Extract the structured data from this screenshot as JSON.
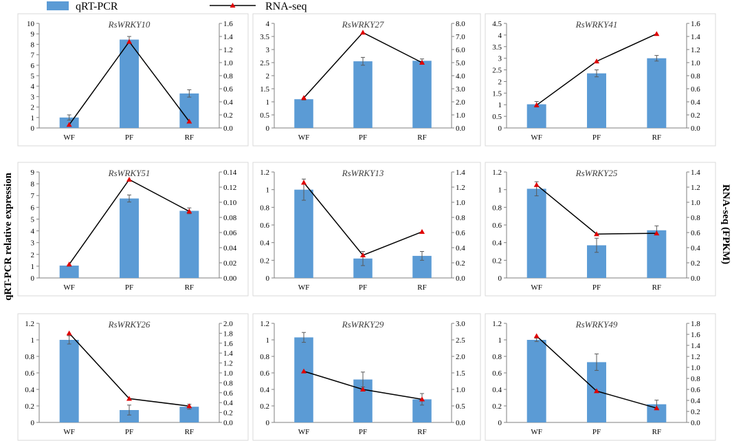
{
  "legend": {
    "bar_label": "qRT-PCR",
    "line_label": "RNA-seq"
  },
  "y_left_label": "qRT-PCR relative expression",
  "y_right_label": "RNA-seq (FPKM)",
  "colors": {
    "bar": "#5b9bd5",
    "line": "#000000",
    "marker": "#e00000",
    "error": "#595959",
    "axis": "#7f7f7f"
  },
  "chart_data": [
    {
      "type": "bar",
      "title": "RsWRKY10",
      "categories": [
        "WF",
        "PF",
        "RF"
      ],
      "series": [
        {
          "name": "qRT-PCR",
          "axis": "left",
          "values": [
            1.0,
            8.45,
            3.3
          ],
          "errors": [
            0.25,
            0.3,
            0.35
          ]
        },
        {
          "name": "RNA-seq",
          "axis": "right",
          "values": [
            0.05,
            1.32,
            0.1
          ]
        }
      ],
      "ylim_left": [
        0,
        10
      ],
      "yticks_left": [
        "0",
        "1",
        "2",
        "3",
        "4",
        "5",
        "6",
        "7",
        "8",
        "9",
        "10"
      ],
      "ylim_right": [
        0,
        1.6
      ],
      "yticks_right": [
        "0.0",
        "0.2",
        "0.4",
        "0.6",
        "0.8",
        "1.0",
        "1.2",
        "1.4",
        "1.6"
      ]
    },
    {
      "type": "bar",
      "title": "RsWRKY27",
      "categories": [
        "WF",
        "PF",
        "RF"
      ],
      "series": [
        {
          "name": "qRT-PCR",
          "axis": "left",
          "values": [
            1.1,
            2.55,
            2.57
          ],
          "errors": [
            0.03,
            0.15,
            0.07
          ]
        },
        {
          "name": "RNA-seq",
          "axis": "right",
          "values": [
            2.3,
            7.3,
            5.0
          ]
        }
      ],
      "ylim_left": [
        0,
        4
      ],
      "yticks_left": [
        "0",
        "0.5",
        "1",
        "1.5",
        "2",
        "2.5",
        "3",
        "3.5",
        "4"
      ],
      "ylim_right": [
        0,
        8
      ],
      "yticks_right": [
        "0.0",
        "1.0",
        "2.0",
        "3.0",
        "4.0",
        "5.0",
        "6.0",
        "7.0",
        "8.0"
      ]
    },
    {
      "type": "bar",
      "title": "RsWRKY41",
      "categories": [
        "WF",
        "PF",
        "RF"
      ],
      "series": [
        {
          "name": "qRT-PCR",
          "axis": "left",
          "values": [
            1.02,
            2.35,
            3.0
          ],
          "errors": [
            0.12,
            0.15,
            0.12
          ]
        },
        {
          "name": "RNA-seq",
          "axis": "right",
          "values": [
            0.35,
            1.02,
            1.44
          ]
        }
      ],
      "ylim_left": [
        0,
        4.5
      ],
      "yticks_left": [
        "0",
        "0.5",
        "1",
        "1.5",
        "2",
        "2.5",
        "3",
        "3.5",
        "4",
        "4.5"
      ],
      "ylim_right": [
        0,
        1.6
      ],
      "yticks_right": [
        "0.0",
        "0.2",
        "0.4",
        "0.6",
        "0.8",
        "1.0",
        "1.2",
        "1.4",
        "1.6"
      ]
    },
    {
      "type": "bar",
      "title": "RsWRKY51",
      "categories": [
        "WF",
        "PF",
        "RF"
      ],
      "series": [
        {
          "name": "qRT-PCR",
          "axis": "left",
          "values": [
            1.05,
            6.75,
            5.7
          ],
          "errors": [
            0.05,
            0.3,
            0.25
          ]
        },
        {
          "name": "RNA-seq",
          "axis": "right",
          "values": [
            0.018,
            0.13,
            0.088
          ]
        }
      ],
      "ylim_left": [
        0,
        9
      ],
      "yticks_left": [
        "0",
        "1",
        "2",
        "3",
        "4",
        "5",
        "6",
        "7",
        "8",
        "9"
      ],
      "ylim_right": [
        0,
        0.14
      ],
      "yticks_right": [
        "0.00",
        "0.02",
        "0.04",
        "0.06",
        "0.08",
        "0.10",
        "0.12",
        "0.14"
      ]
    },
    {
      "type": "bar",
      "title": "RsWRKY13",
      "categories": [
        "WF",
        "PF",
        "RF"
      ],
      "series": [
        {
          "name": "qRT-PCR",
          "axis": "left",
          "values": [
            1.0,
            0.22,
            0.25
          ],
          "errors": [
            0.12,
            0.08,
            0.05
          ]
        },
        {
          "name": "RNA-seq",
          "axis": "right",
          "values": [
            1.26,
            0.3,
            0.61
          ]
        }
      ],
      "ylim_left": [
        0,
        1.2
      ],
      "yticks_left": [
        "0",
        "0.2",
        "0.4",
        "0.6",
        "0.8",
        "1",
        "1.2"
      ],
      "ylim_right": [
        0,
        1.4
      ],
      "yticks_right": [
        "0.0",
        "0.2",
        "0.4",
        "0.6",
        "0.8",
        "1.0",
        "1.2",
        "1.4"
      ]
    },
    {
      "type": "bar",
      "title": "RsWRKY25",
      "categories": [
        "WF",
        "PF",
        "RF"
      ],
      "series": [
        {
          "name": "qRT-PCR",
          "axis": "left",
          "values": [
            1.01,
            0.37,
            0.54
          ],
          "errors": [
            0.08,
            0.08,
            0.05
          ]
        },
        {
          "name": "RNA-seq",
          "axis": "right",
          "values": [
            1.23,
            0.58,
            0.59
          ]
        }
      ],
      "ylim_left": [
        0,
        1.2
      ],
      "yticks_left": [
        "0",
        "0.2",
        "0.4",
        "0.6",
        "0.8",
        "1",
        "1.2"
      ],
      "ylim_right": [
        0,
        1.4
      ],
      "yticks_right": [
        "0.0",
        "0.2",
        "0.4",
        "0.6",
        "0.8",
        "1.0",
        "1.2",
        "1.4"
      ]
    },
    {
      "type": "bar",
      "title": "RsWRKY26",
      "categories": [
        "WF",
        "PF",
        "RF"
      ],
      "series": [
        {
          "name": "qRT-PCR",
          "axis": "left",
          "values": [
            1.0,
            0.15,
            0.19
          ],
          "errors": [
            0.05,
            0.06,
            0.03
          ]
        },
        {
          "name": "RNA-seq",
          "axis": "right",
          "values": [
            1.8,
            0.48,
            0.33
          ]
        }
      ],
      "ylim_left": [
        0,
        1.2
      ],
      "yticks_left": [
        "0",
        "0.2",
        "0.4",
        "0.6",
        "0.8",
        "1",
        "1.2"
      ],
      "ylim_right": [
        0,
        2.0
      ],
      "yticks_right": [
        "0.0",
        "0.2",
        "0.4",
        "0.6",
        "0.8",
        "1.0",
        "1.2",
        "1.4",
        "1.6",
        "1.8",
        "2.0"
      ]
    },
    {
      "type": "bar",
      "title": "RsWRKY29",
      "categories": [
        "WF",
        "PF",
        "RF"
      ],
      "series": [
        {
          "name": "qRT-PCR",
          "axis": "left",
          "values": [
            1.03,
            0.52,
            0.28
          ],
          "errors": [
            0.06,
            0.09,
            0.07
          ]
        },
        {
          "name": "RNA-seq",
          "axis": "right",
          "values": [
            1.55,
            1.0,
            0.7
          ]
        }
      ],
      "ylim_left": [
        0,
        1.2
      ],
      "yticks_left": [
        "0",
        "0.2",
        "0.4",
        "0.6",
        "0.8",
        "1",
        "1.2"
      ],
      "ylim_right": [
        0,
        3.0
      ],
      "yticks_right": [
        "0.0",
        "0.5",
        "1.0",
        "1.5",
        "2.0",
        "2.5",
        "3.0"
      ]
    },
    {
      "type": "bar",
      "title": "RsWRKY49",
      "categories": [
        "WF",
        "PF",
        "RF"
      ],
      "series": [
        {
          "name": "qRT-PCR",
          "axis": "left",
          "values": [
            1.0,
            0.73,
            0.22
          ],
          "errors": [
            0.02,
            0.1,
            0.05
          ]
        },
        {
          "name": "RNA-seq",
          "axis": "right",
          "values": [
            1.57,
            0.57,
            0.26
          ]
        }
      ],
      "ylim_left": [
        0,
        1.2
      ],
      "yticks_left": [
        "0",
        "0.2",
        "0.4",
        "0.6",
        "0.8",
        "1",
        "1.2"
      ],
      "ylim_right": [
        0,
        1.8
      ],
      "yticks_right": [
        "0.0",
        "0.2",
        "0.4",
        "0.6",
        "0.8",
        "1.0",
        "1.2",
        "1.4",
        "1.6",
        "1.8"
      ]
    }
  ]
}
